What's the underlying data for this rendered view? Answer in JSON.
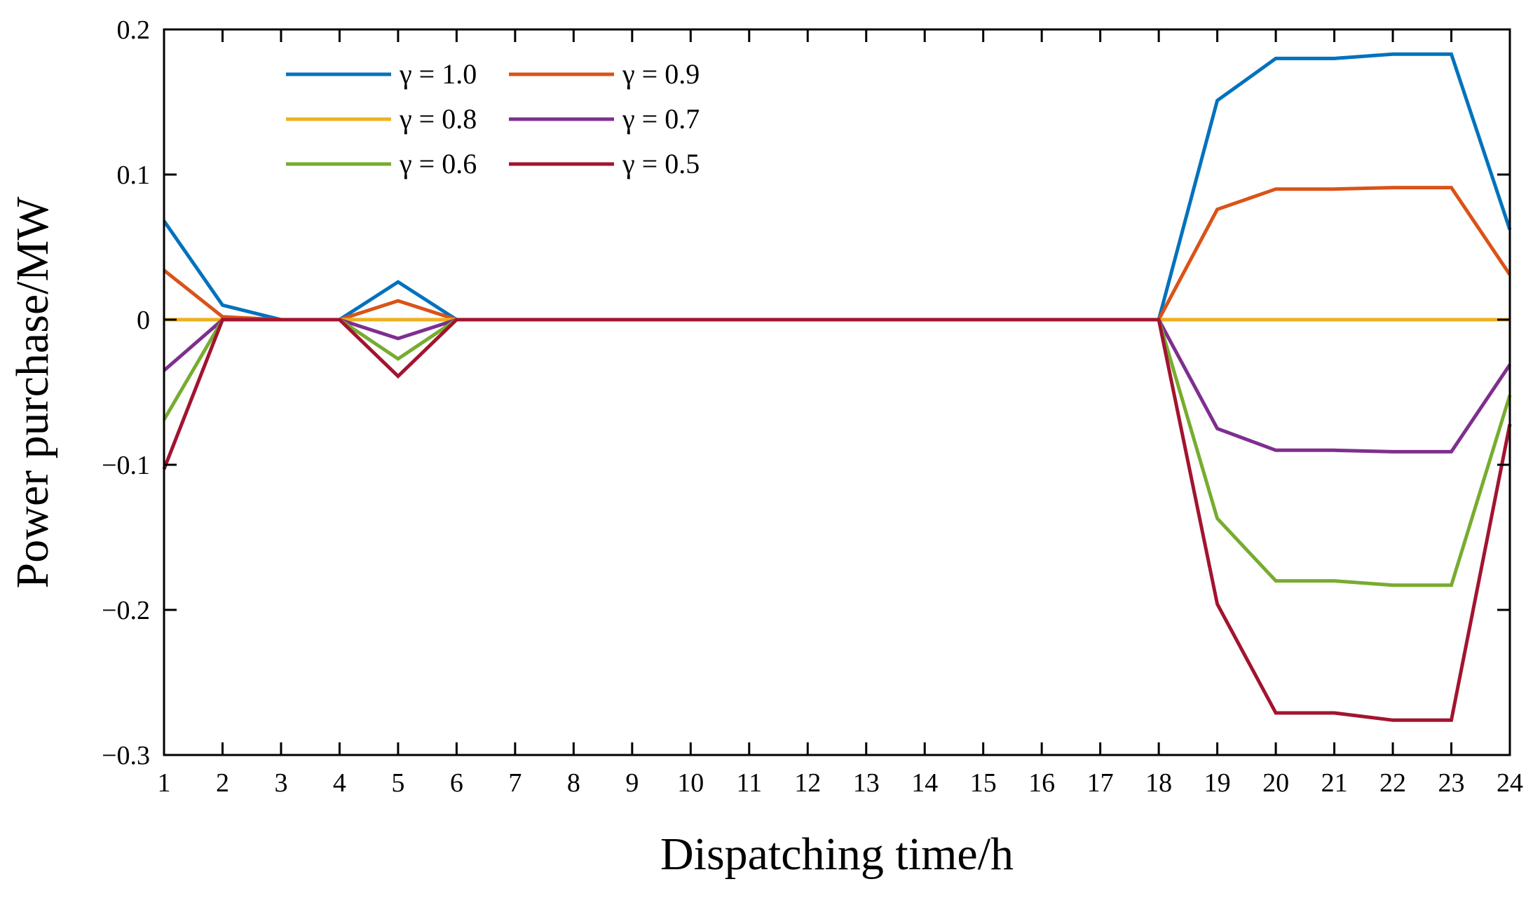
{
  "chart_data": {
    "type": "line",
    "title": "",
    "xlabel": "Dispatching time/h",
    "ylabel": "Power purchase/MW",
    "xlim": [
      1,
      24
    ],
    "ylim": [
      -0.3,
      0.2
    ],
    "grid": false,
    "legend_position": "top-left",
    "x": [
      1,
      2,
      3,
      4,
      5,
      6,
      7,
      8,
      9,
      10,
      11,
      12,
      13,
      14,
      15,
      16,
      17,
      18,
      19,
      20,
      21,
      22,
      23,
      24
    ],
    "xtick_labels": [
      "1",
      "2",
      "3",
      "4",
      "5",
      "6",
      "7",
      "8",
      "9",
      "10",
      "11",
      "12",
      "13",
      "14",
      "15",
      "16",
      "17",
      "18",
      "19",
      "20",
      "21",
      "22",
      "23",
      "24"
    ],
    "yticks": [
      0.2,
      0.1,
      0,
      -0.1,
      -0.2,
      -0.3
    ],
    "ytick_labels": [
      "0.2",
      "0.1",
      "0",
      "−0.1",
      "−0.2",
      "−0.3"
    ],
    "series": [
      {
        "name": "γ = 1.0",
        "color": "#0072BD",
        "values": [
          0.068,
          0.01,
          0,
          0,
          0.026,
          0,
          0,
          0,
          0,
          0,
          0,
          0,
          0,
          0,
          0,
          0,
          0,
          0,
          0.151,
          0.18,
          0.18,
          0.183,
          0.183,
          0.062
        ]
      },
      {
        "name": "γ = 0.9",
        "color": "#D95319",
        "values": [
          0.034,
          0.002,
          0,
          0,
          0.013,
          0,
          0,
          0,
          0,
          0,
          0,
          0,
          0,
          0,
          0,
          0,
          0,
          0,
          0.076,
          0.09,
          0.09,
          0.091,
          0.091,
          0.031
        ]
      },
      {
        "name": "γ = 0.8",
        "color": "#EDB120",
        "values": [
          0,
          0,
          0,
          0,
          0,
          0,
          0,
          0,
          0,
          0,
          0,
          0,
          0,
          0,
          0,
          0,
          0,
          0,
          0,
          0,
          0,
          0,
          0,
          0
        ]
      },
      {
        "name": "γ = 0.7",
        "color": "#7E2F8E",
        "values": [
          -0.035,
          0,
          0,
          0,
          -0.013,
          0,
          0,
          0,
          0,
          0,
          0,
          0,
          0,
          0,
          0,
          0,
          0,
          0,
          -0.075,
          -0.09,
          -0.09,
          -0.091,
          -0.091,
          -0.031
        ]
      },
      {
        "name": "γ = 0.6",
        "color": "#77AC30",
        "values": [
          -0.069,
          0,
          0,
          0,
          -0.027,
          0,
          0,
          0,
          0,
          0,
          0,
          0,
          0,
          0,
          0,
          0,
          0,
          0,
          -0.137,
          -0.18,
          -0.18,
          -0.183,
          -0.183,
          -0.052
        ]
      },
      {
        "name": "γ = 0.5",
        "color": "#A2142F",
        "values": [
          -0.103,
          0,
          0,
          0,
          -0.039,
          0,
          0,
          0,
          0,
          0,
          0,
          0,
          0,
          0,
          0,
          0,
          0,
          0,
          -0.196,
          -0.271,
          -0.271,
          -0.276,
          -0.276,
          -0.072
        ]
      }
    ]
  }
}
